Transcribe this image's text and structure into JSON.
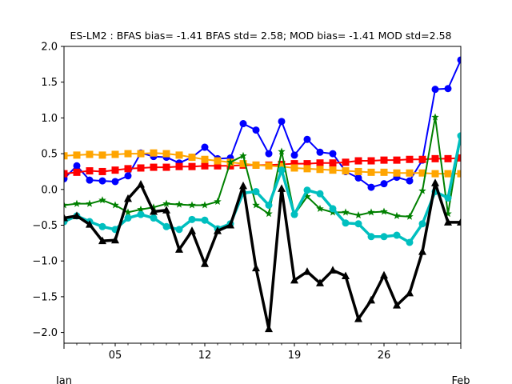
{
  "chart_data": {
    "type": "line",
    "title": "ES-LM2   : BFAS bias= -1.41 BFAS std= 2.58; MOD bias= -1.41 MOD std=2.58",
    "xlabel": "",
    "ylabel": "",
    "x": [
      1,
      2,
      3,
      4,
      5,
      6,
      7,
      8,
      9,
      10,
      11,
      12,
      13,
      14,
      15,
      16,
      17,
      18,
      19,
      20,
      21,
      22,
      23,
      24,
      25,
      26,
      27,
      28,
      29,
      30,
      31,
      32
    ],
    "xlim": [
      1,
      32
    ],
    "ylim": [
      -2.15,
      2.0
    ],
    "x_ticks": [
      {
        "value": 5,
        "label": "05"
      },
      {
        "value": 12,
        "label": "12"
      },
      {
        "value": 19,
        "label": "19"
      },
      {
        "value": 26,
        "label": "26"
      }
    ],
    "x_minor_ticks": [
      2,
      3,
      4,
      6,
      7,
      8,
      9,
      10,
      11,
      13,
      14,
      15,
      16,
      17,
      18,
      20,
      21,
      22,
      23,
      24,
      25,
      27,
      28,
      29,
      30,
      31
    ],
    "x_month_labels": [
      {
        "value": 1,
        "label": "Jan"
      },
      {
        "value": 32,
        "label": "Feb"
      }
    ],
    "y_ticks": [
      {
        "value": 2.0,
        "label": "2.0"
      },
      {
        "value": 1.5,
        "label": "1.5"
      },
      {
        "value": 1.0,
        "label": "1.0"
      },
      {
        "value": 0.5,
        "label": "0.5"
      },
      {
        "value": 0.0,
        "label": "0.0"
      },
      {
        "value": -0.5,
        "label": "−0.5"
      },
      {
        "value": -1.0,
        "label": "−1.0"
      },
      {
        "value": -1.5,
        "label": "−1.5"
      },
      {
        "value": -2.0,
        "label": "−2.0"
      }
    ],
    "grid": false,
    "legend": "none",
    "series": [
      {
        "color": "#0000ff",
        "marker": "circle",
        "line_width": 2,
        "values": [
          0.15,
          0.33,
          0.13,
          0.12,
          0.11,
          0.19,
          0.51,
          0.46,
          0.45,
          0.37,
          0.45,
          0.59,
          0.43,
          0.44,
          0.92,
          0.83,
          0.5,
          0.95,
          0.48,
          0.7,
          0.52,
          0.5,
          0.25,
          0.16,
          0.03,
          0.08,
          0.17,
          0.12,
          0.41,
          1.4,
          1.41,
          1.81
        ]
      },
      {
        "color": "#ff0000",
        "marker": "square",
        "line_width": 2,
        "values": [
          0.22,
          0.24,
          0.26,
          0.25,
          0.27,
          0.29,
          0.3,
          0.31,
          0.31,
          0.32,
          0.32,
          0.33,
          0.33,
          0.33,
          0.34,
          0.34,
          0.34,
          0.35,
          0.36,
          0.36,
          0.37,
          0.37,
          0.38,
          0.4,
          0.4,
          0.41,
          0.41,
          0.42,
          0.42,
          0.43,
          0.43,
          0.44
        ]
      },
      {
        "color": "#ffa500",
        "marker": "square",
        "line_width": 2,
        "values": [
          0.47,
          0.48,
          0.49,
          0.48,
          0.49,
          0.5,
          0.5,
          0.51,
          0.5,
          0.48,
          0.45,
          0.42,
          0.4,
          0.38,
          0.36,
          0.34,
          0.33,
          0.32,
          0.3,
          0.29,
          0.28,
          0.27,
          0.26,
          0.25,
          0.24,
          0.24,
          0.23,
          0.23,
          0.23,
          0.22,
          0.22,
          0.22
        ]
      },
      {
        "color": "#008000",
        "marker": "star",
        "line_width": 2,
        "values": [
          -0.22,
          -0.2,
          -0.2,
          -0.15,
          -0.22,
          -0.32,
          -0.28,
          -0.25,
          -0.2,
          -0.21,
          -0.22,
          -0.22,
          -0.17,
          0.38,
          0.47,
          -0.22,
          -0.34,
          0.53,
          -0.35,
          -0.1,
          -0.27,
          -0.32,
          -0.32,
          -0.36,
          -0.32,
          -0.31,
          -0.37,
          -0.38,
          -0.02,
          1.01,
          -0.34,
          0.75
        ]
      },
      {
        "color": "#00bfbf",
        "marker": "circle",
        "line_width": 3.5,
        "values": [
          -0.45,
          -0.37,
          -0.45,
          -0.52,
          -0.56,
          -0.4,
          -0.35,
          -0.4,
          -0.52,
          -0.56,
          -0.42,
          -0.43,
          -0.55,
          -0.48,
          -0.05,
          -0.03,
          -0.22,
          0.27,
          -0.35,
          -0.01,
          -0.06,
          -0.27,
          -0.47,
          -0.48,
          -0.66,
          -0.66,
          -0.64,
          -0.74,
          -0.48,
          -0.03,
          -0.12,
          0.75
        ]
      },
      {
        "color": "#000000",
        "marker": "triangle",
        "line_width": 3.5,
        "values": [
          -0.4,
          -0.37,
          -0.49,
          -0.72,
          -0.71,
          -0.13,
          0.07,
          -0.31,
          -0.29,
          -0.84,
          -0.58,
          -1.04,
          -0.58,
          -0.5,
          0.05,
          -1.1,
          -1.95,
          0.01,
          -1.27,
          -1.15,
          -1.31,
          -1.13,
          -1.21,
          -1.81,
          -1.55,
          -1.2,
          -1.62,
          -1.45,
          -0.87,
          0.09,
          -0.46,
          -0.46
        ]
      }
    ]
  }
}
